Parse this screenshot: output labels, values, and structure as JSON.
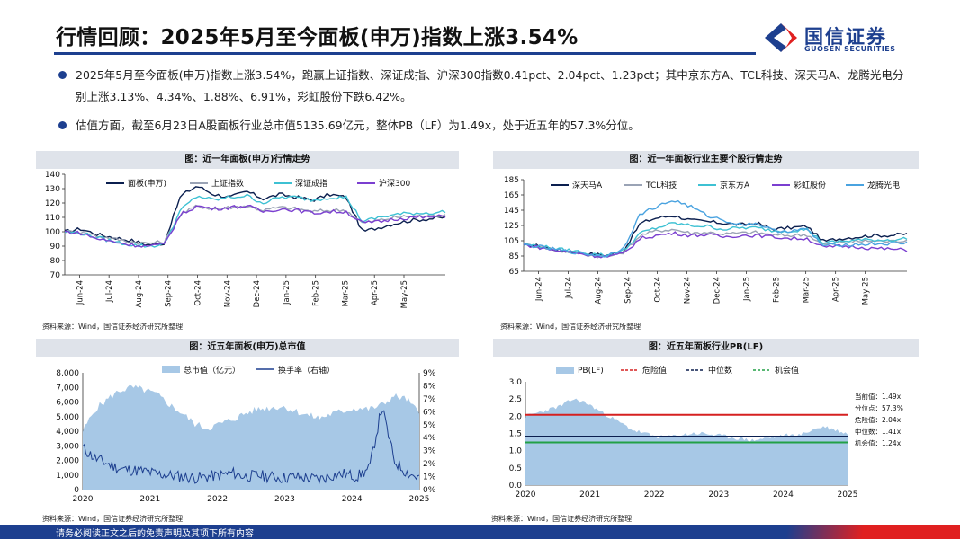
{
  "header": {
    "title": "行情回顾：2025年5月至今面板(申万)指数上涨3.54%",
    "logo_cn": "国信证券",
    "logo_en": "GUOSEN SECURITIES"
  },
  "bullets": [
    "2025年5月至今面板(申万)指数上涨3.54%，跑赢上证指数、深证成指、沪深300指数0.41pct、2.04pct、1.23pct；其中京东方A、TCL科技、深天马A、龙腾光电分别上涨3.13%、4.34%、1.88%、6.91%，彩虹股份下跌6.42%。",
    "估值方面，截至6月23日A股面板行业总市值5135.69亿元，整体PB（LF）为1.49x，处于近五年的57.3%分位。"
  ],
  "panels": {
    "p1_title": "图：近一年面板(申万)行情走势",
    "p2_title": "图：近一年面板行业主要个股行情走势",
    "p3_title": "图：近五年面板(申万)总市值",
    "p4_title": "图：近五年面板行业PB(LF)",
    "source": "资料来源：Wind，国信证券经济研究所整理"
  },
  "footer": {
    "disclaimer": "请务必阅读正文之后的免责声明及其项下所有内容"
  },
  "colors": {
    "brand": "#1d3f8f",
    "accent_red": "#e02020",
    "panel_head": "#dfe3ea"
  },
  "chart_data": [
    {
      "type": "line",
      "title": "图：近一年面板(申万)行情走势",
      "xlabel": "",
      "ylabel": "",
      "ylim": [
        70,
        140
      ],
      "y_ticks": [
        70,
        80,
        90,
        100,
        110,
        120,
        130,
        140
      ],
      "x_ticks": [
        "Jun-24",
        "Jul-24",
        "Aug-24",
        "Sep-24",
        "Oct-24",
        "Nov-24",
        "Dec-24",
        "Jan-25",
        "Feb-25",
        "Mar-25",
        "Apr-25",
        "May-25"
      ],
      "series": [
        {
          "name": "面板(申万)",
          "color": "#0b1f4f",
          "values": [
            100,
            102,
            98,
            96,
            94,
            91,
            92,
            125,
            132,
            126,
            124,
            128,
            123,
            126,
            124,
            122,
            126,
            124,
            100,
            103,
            106,
            108,
            109,
            110
          ]
        },
        {
          "name": "上证指数",
          "color": "#9aa3b5",
          "values": [
            100,
            100,
            97,
            95,
            93,
            92,
            93,
            112,
            118,
            116,
            117,
            118,
            115,
            117,
            116,
            114,
            115,
            115,
            106,
            108,
            110,
            111,
            111,
            112
          ]
        },
        {
          "name": "深证成指",
          "color": "#3ec1d3",
          "values": [
            100,
            99,
            96,
            93,
            91,
            90,
            91,
            115,
            125,
            122,
            124,
            125,
            120,
            124,
            124,
            122,
            124,
            124,
            107,
            110,
            112,
            113,
            113,
            114
          ]
        },
        {
          "name": "沪深300",
          "color": "#7b3fd0",
          "values": [
            100,
            99,
            95,
            93,
            91,
            90,
            91,
            112,
            118,
            116,
            117,
            118,
            114,
            116,
            115,
            113,
            114,
            114,
            106,
            107,
            109,
            110,
            110,
            111
          ]
        }
      ]
    },
    {
      "type": "line",
      "title": "图：近一年面板行业主要个股行情走势",
      "xlabel": "",
      "ylabel": "",
      "ylim": [
        65,
        185
      ],
      "y_ticks": [
        65,
        85,
        105,
        125,
        145,
        165,
        185
      ],
      "x_ticks": [
        "Jun-24",
        "Jul-24",
        "Aug-24",
        "Sep-24",
        "Oct-24",
        "Nov-24",
        "Dec-24",
        "Jan-25",
        "Feb-25",
        "Mar-25",
        "Apr-25",
        "May-25"
      ],
      "series": [
        {
          "name": "深天马A",
          "color": "#0b1f4f",
          "values": [
            100,
            98,
            93,
            90,
            88,
            86,
            92,
            128,
            135,
            138,
            132,
            130,
            128,
            126,
            128,
            120,
            122,
            124,
            104,
            108,
            110,
            112,
            112,
            114
          ]
        },
        {
          "name": "TCL科技",
          "color": "#9aa3b5",
          "values": [
            100,
            97,
            92,
            90,
            86,
            84,
            90,
            112,
            118,
            120,
            115,
            116,
            114,
            115,
            116,
            112,
            112,
            113,
            100,
            102,
            104,
            105,
            104,
            106
          ]
        },
        {
          "name": "京东方A",
          "color": "#3ec1d3",
          "values": [
            100,
            98,
            94,
            92,
            88,
            86,
            92,
            115,
            122,
            128,
            125,
            124,
            120,
            122,
            122,
            118,
            118,
            120,
            102,
            104,
            106,
            106,
            106,
            108
          ]
        },
        {
          "name": "彩虹股份",
          "color": "#7b3fd0",
          "values": [
            100,
            96,
            92,
            90,
            86,
            84,
            88,
            108,
            112,
            115,
            112,
            113,
            110,
            112,
            112,
            110,
            108,
            108,
            96,
            98,
            97,
            95,
            94,
            93
          ]
        },
        {
          "name": "龙腾光电",
          "color": "#4aa3e0",
          "values": [
            100,
            97,
            93,
            90,
            87,
            85,
            96,
            140,
            150,
            158,
            150,
            138,
            132,
            126,
            128,
            118,
            118,
            120,
            98,
            100,
            100,
            101,
            101,
            102
          ]
        }
      ]
    },
    {
      "type": "area",
      "title": "图：近五年面板(申万)总市值",
      "xlabel": "",
      "ylabel": "",
      "ylim": [
        0,
        8000
      ],
      "y_ticks": [
        0,
        1000,
        2000,
        3000,
        4000,
        5000,
        6000,
        7000,
        8000
      ],
      "y2lim": [
        0,
        9
      ],
      "y2_ticks": [
        "0%",
        "1%",
        "2%",
        "3%",
        "4%",
        "5%",
        "6%",
        "7%",
        "8%",
        "9%"
      ],
      "x_ticks": [
        "2020",
        "2021",
        "2022",
        "2023",
        "2024",
        "2025"
      ],
      "series": [
        {
          "name": "总市值（亿元）",
          "color": "#a7c8e6",
          "axis": "left",
          "values": [
            4000,
            5500,
            6200,
            6800,
            7000,
            6800,
            6500,
            5800,
            5200,
            4500,
            4200,
            4500,
            4800,
            5200,
            5500,
            5600,
            5700,
            5400,
            5100,
            4900,
            5200,
            5400,
            5600,
            5500,
            5800,
            6400,
            6200,
            5200
          ]
        },
        {
          "name": "换手率（右轴）",
          "color": "#1d3f8f",
          "axis": "right",
          "values": [
            3.2,
            2.4,
            2.0,
            1.6,
            1.5,
            1.4,
            1.2,
            1.1,
            1.0,
            0.9,
            1.0,
            1.1,
            1.3,
            1.0,
            1.1,
            1.0,
            0.9,
            1.0,
            0.9,
            0.8,
            1.1,
            1.2,
            1.0,
            1.6,
            6.4,
            2.2,
            1.3,
            0.9
          ]
        }
      ]
    },
    {
      "type": "area",
      "title": "图：近五年面板行业PB(LF)",
      "xlabel": "",
      "ylabel": "",
      "ylim": [
        0,
        3.0
      ],
      "y_ticks": [
        0.0,
        0.5,
        1.0,
        1.5,
        2.0,
        2.5,
        3.0
      ],
      "x_ticks": [
        "2020",
        "2021",
        "2022",
        "2023",
        "2024",
        "2025"
      ],
      "series": [
        {
          "name": "PB(LF)",
          "color": "#a7c8e6",
          "values": [
            2.0,
            2.1,
            2.2,
            2.3,
            2.5,
            2.4,
            2.2,
            2.0,
            1.8,
            1.6,
            1.5,
            1.4,
            1.4,
            1.45,
            1.5,
            1.5,
            1.45,
            1.4,
            1.35,
            1.3,
            1.35,
            1.4,
            1.45,
            1.45,
            1.6,
            1.7,
            1.6,
            1.49
          ]
        },
        {
          "name": "危险值",
          "color": "#d62020",
          "style": "dashed",
          "constant": 2.04
        },
        {
          "name": "中位数",
          "color": "#0b1f4f",
          "style": "dashed",
          "constant": 1.41
        },
        {
          "name": "机会值",
          "color": "#22a046",
          "style": "dashed",
          "constant": 1.24
        }
      ],
      "annotations": [
        {
          "label": "当前值：",
          "value": "1.49x"
        },
        {
          "label": "分位点：",
          "value": "57.3%"
        },
        {
          "label": "危险值：",
          "value": "2.04x"
        },
        {
          "label": "中位数：",
          "value": "1.41x"
        },
        {
          "label": "机会值：",
          "value": "1.24x"
        }
      ]
    }
  ]
}
